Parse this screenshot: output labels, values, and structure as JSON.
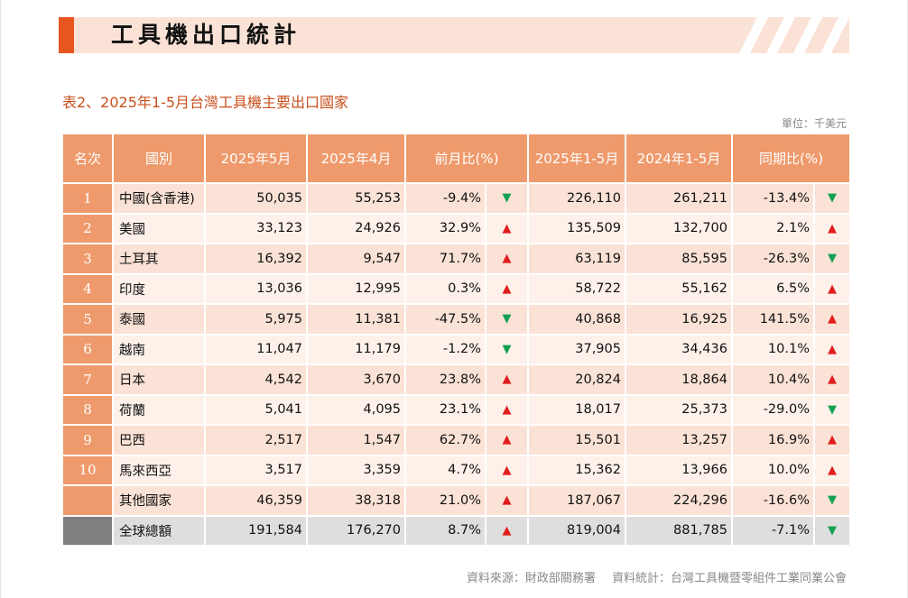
{
  "header": {
    "title": "工具機出口統計"
  },
  "table_title": "表2、2025年1-5月台灣工具機主要出口國家",
  "unit": "單位：千美元",
  "columns": [
    "名次",
    "國別",
    "2025年5月",
    "2025年4月",
    "前月比(%)",
    "2025年1-5月",
    "2024年1-5月",
    "同期比(%)"
  ],
  "rows": [
    {
      "rank": "1",
      "country": "中國(含香港)",
      "may2025": "50,035",
      "apr2025": "55,253",
      "mom": "-9.4%",
      "mom_dir": "down",
      "ytd2025": "226,110",
      "ytd2024": "261,211",
      "yoy": "-13.4%",
      "yoy_dir": "down"
    },
    {
      "rank": "2",
      "country": "美國",
      "may2025": "33,123",
      "apr2025": "24,926",
      "mom": "32.9%",
      "mom_dir": "up",
      "ytd2025": "135,509",
      "ytd2024": "132,700",
      "yoy": "2.1%",
      "yoy_dir": "up"
    },
    {
      "rank": "3",
      "country": "土耳其",
      "may2025": "16,392",
      "apr2025": "9,547",
      "mom": "71.7%",
      "mom_dir": "up",
      "ytd2025": "63,119",
      "ytd2024": "85,595",
      "yoy": "-26.3%",
      "yoy_dir": "down"
    },
    {
      "rank": "4",
      "country": "印度",
      "may2025": "13,036",
      "apr2025": "12,995",
      "mom": "0.3%",
      "mom_dir": "up",
      "ytd2025": "58,722",
      "ytd2024": "55,162",
      "yoy": "6.5%",
      "yoy_dir": "up"
    },
    {
      "rank": "5",
      "country": "泰國",
      "may2025": "5,975",
      "apr2025": "11,381",
      "mom": "-47.5%",
      "mom_dir": "down",
      "ytd2025": "40,868",
      "ytd2024": "16,925",
      "yoy": "141.5%",
      "yoy_dir": "up"
    },
    {
      "rank": "6",
      "country": "越南",
      "may2025": "11,047",
      "apr2025": "11,179",
      "mom": "-1.2%",
      "mom_dir": "down",
      "ytd2025": "37,905",
      "ytd2024": "34,436",
      "yoy": "10.1%",
      "yoy_dir": "up"
    },
    {
      "rank": "7",
      "country": "日本",
      "may2025": "4,542",
      "apr2025": "3,670",
      "mom": "23.8%",
      "mom_dir": "up",
      "ytd2025": "20,824",
      "ytd2024": "18,864",
      "yoy": "10.4%",
      "yoy_dir": "up"
    },
    {
      "rank": "8",
      "country": "荷蘭",
      "may2025": "5,041",
      "apr2025": "4,095",
      "mom": "23.1%",
      "mom_dir": "up",
      "ytd2025": "18,017",
      "ytd2024": "25,373",
      "yoy": "-29.0%",
      "yoy_dir": "down"
    },
    {
      "rank": "9",
      "country": "巴西",
      "may2025": "2,517",
      "apr2025": "1,547",
      "mom": "62.7%",
      "mom_dir": "up",
      "ytd2025": "15,501",
      "ytd2024": "13,257",
      "yoy": "16.9%",
      "yoy_dir": "up"
    },
    {
      "rank": "10",
      "country": "馬來西亞",
      "may2025": "3,517",
      "apr2025": "3,359",
      "mom": "4.7%",
      "mom_dir": "up",
      "ytd2025": "15,362",
      "ytd2024": "13,966",
      "yoy": "10.0%",
      "yoy_dir": "up"
    },
    {
      "rank": "",
      "country": "其他國家",
      "may2025": "46,359",
      "apr2025": "38,318",
      "mom": "21.0%",
      "mom_dir": "up",
      "ytd2025": "187,067",
      "ytd2024": "224,296",
      "yoy": "-16.6%",
      "yoy_dir": "down"
    },
    {
      "rank": "",
      "country": "全球總額",
      "may2025": "191,584",
      "apr2025": "176,270",
      "mom": "8.7%",
      "mom_dir": "up",
      "ytd2025": "819,004",
      "ytd2024": "881,785",
      "yoy": "-7.1%",
      "yoy_dir": "down",
      "total": true
    }
  ],
  "arrows": {
    "up": "▲",
    "down": "▼"
  },
  "colors": {
    "accent": "#e8561f",
    "header_bg": "#ee9a6c",
    "up": "#e11c1c",
    "down": "#13a052"
  },
  "footer": {
    "source": "資料來源：財政部關務署",
    "compiled": "資料統計：台灣工具機暨零組件工業同業公會"
  }
}
